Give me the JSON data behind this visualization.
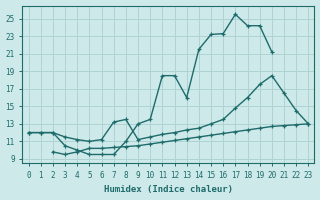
{
  "xlabel": "Humidex (Indice chaleur)",
  "xlim": [
    -0.5,
    23.5
  ],
  "ylim": [
    8.5,
    26.5
  ],
  "yticks": [
    9,
    11,
    13,
    15,
    17,
    19,
    21,
    23,
    25
  ],
  "xticks": [
    0,
    1,
    2,
    3,
    4,
    5,
    6,
    7,
    8,
    9,
    10,
    11,
    12,
    13,
    14,
    15,
    16,
    17,
    18,
    19,
    20,
    21,
    22,
    23
  ],
  "bg_color": "#cee9e9",
  "grid_color": "#afd3d3",
  "line_color": "#1e6b6b",
  "line1_x": [
    0,
    1,
    2,
    3,
    4,
    5,
    6,
    7,
    8,
    9,
    10,
    11,
    12,
    13,
    14,
    15,
    16,
    17,
    18,
    19,
    20
  ],
  "line1_y": [
    12,
    12,
    12,
    10.5,
    10,
    9.5,
    9.5,
    9.5,
    11,
    13,
    13.5,
    18.5,
    18.5,
    16,
    21.5,
    23.2,
    23.3,
    25.5,
    24.2,
    24.2,
    21.2
  ],
  "line2_x": [
    0,
    1,
    2,
    3,
    4,
    5,
    6,
    7,
    8,
    9,
    10,
    11,
    12,
    13,
    14,
    15,
    16,
    17,
    18,
    19,
    20,
    21,
    22,
    23
  ],
  "line2_y": [
    12.0,
    12.0,
    12.0,
    11.5,
    11.2,
    11.0,
    11.2,
    13.2,
    13.5,
    11.2,
    11.5,
    11.8,
    12.0,
    12.3,
    12.5,
    13.0,
    13.5,
    14.8,
    16.0,
    17.5,
    18.5,
    16.5,
    14.5,
    13.0
  ],
  "line3_x": [
    2,
    3,
    4,
    5,
    6,
    7,
    8,
    9,
    10,
    11,
    12,
    13,
    14,
    15,
    16,
    17,
    18,
    19,
    20,
    21,
    22,
    23
  ],
  "line3_y": [
    9.8,
    9.5,
    9.8,
    10.2,
    10.2,
    10.3,
    10.4,
    10.5,
    10.7,
    10.9,
    11.1,
    11.3,
    11.5,
    11.7,
    11.9,
    12.1,
    12.3,
    12.5,
    12.7,
    12.8,
    12.9,
    13.0
  ]
}
